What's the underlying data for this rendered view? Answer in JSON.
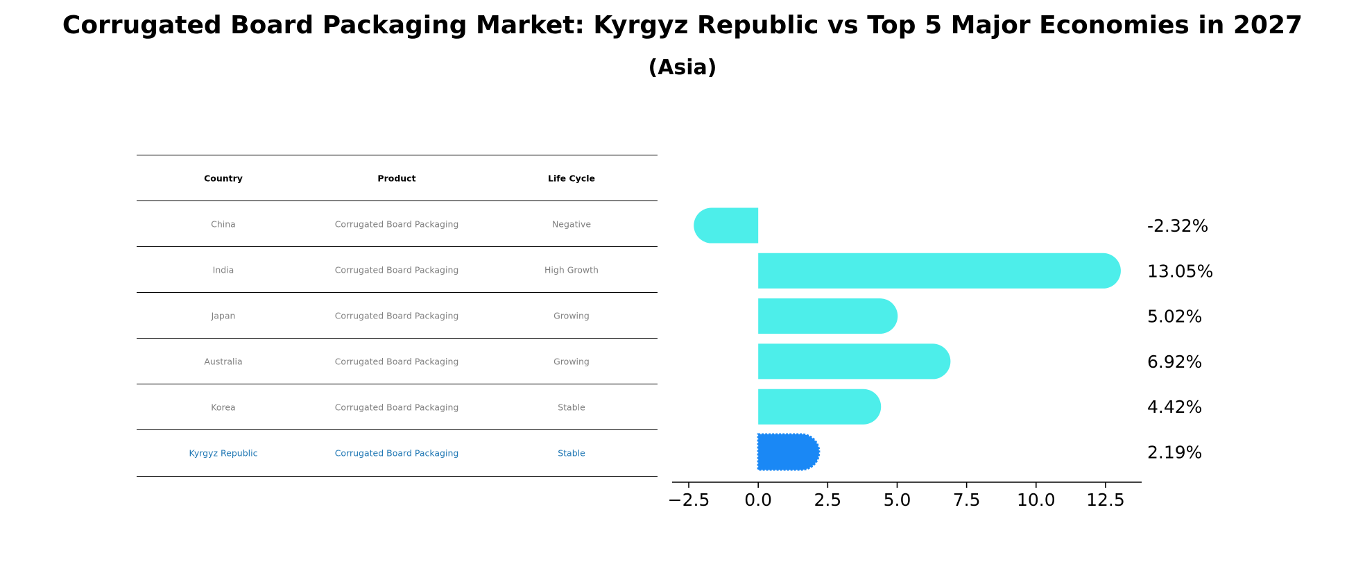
{
  "title": "Corrugated Board Packaging Market: Kyrgyz Republic vs Top 5 Major Economies in 2027",
  "subtitle": "(Asia)",
  "table": {
    "headers": [
      "Country",
      "Product",
      "Life Cycle"
    ],
    "rows": [
      [
        "China",
        "Corrugated Board Packaging",
        "Negative"
      ],
      [
        "India",
        "Corrugated Board Packaging",
        "High Growth"
      ],
      [
        "Japan",
        "Corrugated Board Packaging",
        "Growing"
      ],
      [
        "Australia",
        "Corrugated Board Packaging",
        "Growing"
      ],
      [
        "Korea",
        "Corrugated Board Packaging",
        "Stable"
      ],
      [
        "Kyrgyz Republic",
        "Corrugated Board Packaging",
        "Stable"
      ]
    ]
  },
  "chart_data": {
    "type": "bar",
    "orientation": "horizontal",
    "categories": [
      "China",
      "India",
      "Japan",
      "Australia",
      "Korea",
      "Kyrgyz Republic"
    ],
    "values": [
      -2.32,
      13.05,
      5.02,
      6.92,
      4.42,
      2.19
    ],
    "value_labels": [
      "-2.32%",
      "13.05%",
      "5.02%",
      "6.92%",
      "4.42%",
      "2.19%"
    ],
    "xlim": [
      -3.1,
      13.8
    ],
    "xticks": [
      -2.5,
      0.0,
      2.5,
      5.0,
      7.5,
      10.0,
      12.5
    ],
    "xtick_labels": [
      "−2.5",
      "0.0",
      "2.5",
      "5.0",
      "7.5",
      "10.0",
      "12.5"
    ],
    "grid": false,
    "colors": {
      "default": "#4deeea",
      "highlight": "#1a88f5",
      "highlight_text": "#1f77b4"
    },
    "highlight_index": 5
  }
}
